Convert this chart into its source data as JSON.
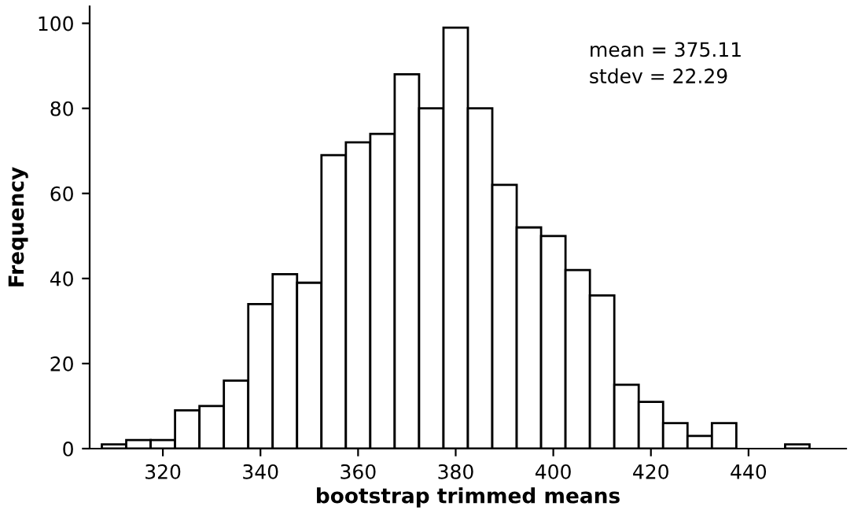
{
  "chart_data": {
    "type": "histogram",
    "xlabel": "bootstrap trimmed means",
    "ylabel": "Frequency",
    "bins": [
      307.5,
      312.5,
      317.5,
      322.5,
      327.5,
      332.5,
      337.5,
      342.5,
      347.5,
      352.5,
      357.5,
      362.5,
      367.5,
      372.5,
      377.5,
      382.5,
      387.5,
      392.5,
      397.5,
      402.5,
      407.5,
      412.5,
      417.5,
      422.5,
      427.5,
      432.5,
      437.5,
      442.5,
      447.5,
      452.5
    ],
    "values": [
      1,
      2,
      2,
      9,
      10,
      16,
      34,
      41,
      39,
      69,
      72,
      74,
      88,
      80,
      99,
      80,
      62,
      52,
      50,
      42,
      36,
      15,
      11,
      6,
      3,
      6,
      0,
      0,
      1
    ],
    "color": "#ffffff",
    "xlim": [
      305,
      460
    ],
    "ylim": [
      0,
      104
    ],
    "xticks": [
      320,
      340,
      360,
      380,
      400,
      420,
      440
    ],
    "yticks": [
      0,
      20,
      40,
      60,
      80,
      100
    ],
    "grid": false,
    "annotations": [
      {
        "text": "mean = 375.11\nstdev = 22.29"
      }
    ]
  }
}
